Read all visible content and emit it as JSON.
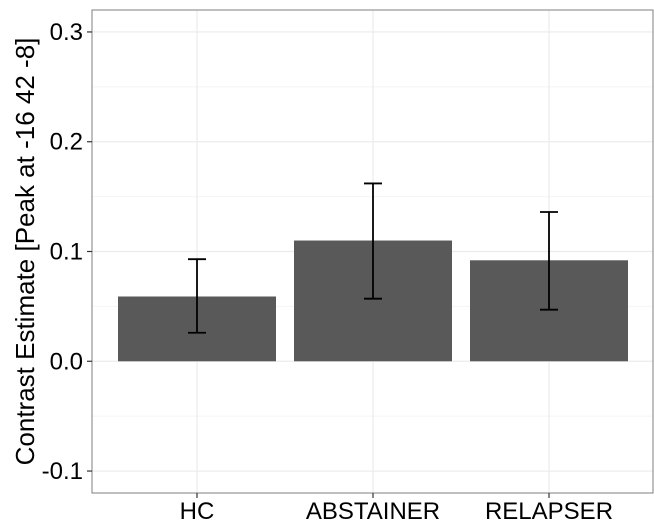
{
  "chart_data": {
    "type": "bar",
    "title": "",
    "xlabel": "",
    "ylabel": "Contrast Estimate [Peak at -16 42 -8]",
    "categories": [
      "HC",
      "ABSTAINER",
      "RELAPSER"
    ],
    "values": [
      0.059,
      0.11,
      0.092
    ],
    "error_bars": {
      "lower": [
        0.026,
        0.057,
        0.047
      ],
      "upper": [
        0.093,
        0.162,
        0.136
      ]
    },
    "ylim": [
      -0.12,
      0.32
    ],
    "yticks": [
      -0.1,
      0.0,
      0.1,
      0.2,
      0.3
    ],
    "ytick_labels": [
      "-0.1",
      "0.0",
      "0.1",
      "0.2",
      "0.3"
    ],
    "grid": true,
    "bar_color": "#595959",
    "errorbar_color": "#000000",
    "grid_color": "#ebebeb",
    "panel_border_color": "#7f7f7f"
  }
}
